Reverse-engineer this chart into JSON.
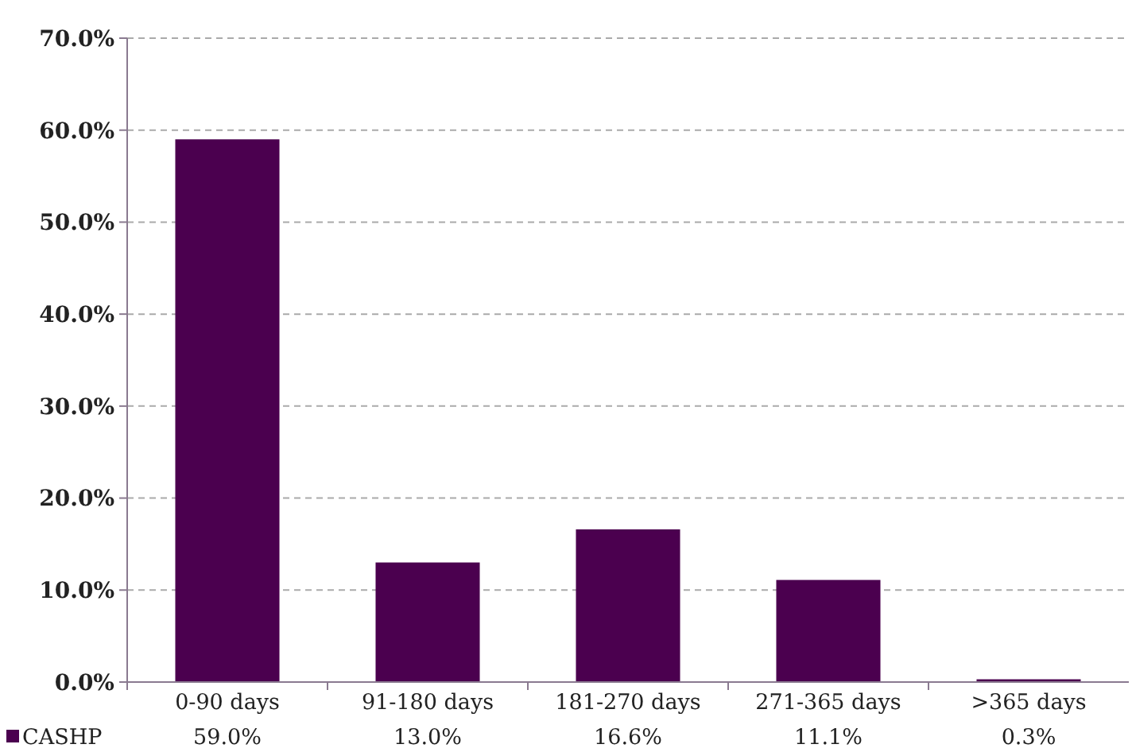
{
  "chart_data": {
    "type": "bar",
    "categories": [
      "0-90 days",
      "91-180 days",
      "181-270 days",
      "271-365 days",
      ">365 days"
    ],
    "series": [
      {
        "name": "CASHP",
        "color": "#4b004f",
        "values": [
          59.0,
          13.0,
          16.6,
          11.1,
          0.3
        ],
        "value_labels": [
          "59.0%",
          "13.0%",
          "16.6%",
          "11.1%",
          "0.3%"
        ]
      }
    ],
    "ylim": [
      0,
      70
    ],
    "yticks": [
      {
        "value": 0,
        "label": "0.0%"
      },
      {
        "value": 10,
        "label": "10.0%"
      },
      {
        "value": 20,
        "label": "20.0%"
      },
      {
        "value": 30,
        "label": "30.0%"
      },
      {
        "value": 40,
        "label": "40.0%"
      },
      {
        "value": 50,
        "label": "50.0%"
      },
      {
        "value": 60,
        "label": "60.0%"
      },
      {
        "value": 70,
        "label": "70.0%"
      }
    ],
    "grid": "y",
    "legend": "bottom left"
  }
}
